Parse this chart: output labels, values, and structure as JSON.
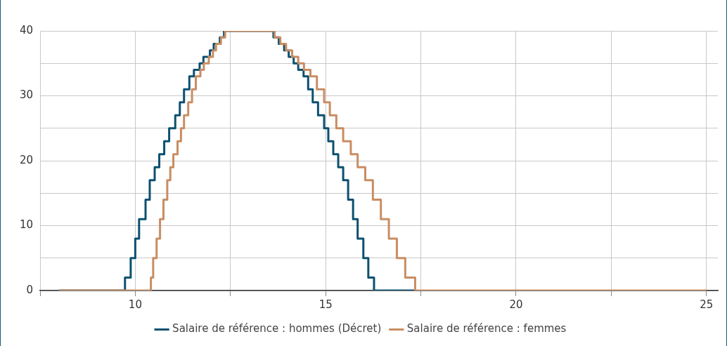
{
  "chart_data": {
    "type": "step",
    "xlim": [
      7.5,
      25.3
    ],
    "xticks": [
      {
        "value": 7.5,
        "label": null
      },
      10,
      {
        "value": 12.5,
        "label": null
      },
      15,
      {
        "value": 17.5,
        "label": null
      },
      20,
      {
        "value": 22.5,
        "label": null
      },
      25
    ],
    "ylim": [
      0,
      40
    ],
    "yticks": [
      0,
      {
        "value": 5,
        "label": null
      },
      10,
      {
        "value": 15,
        "label": null
      },
      20,
      {
        "value": 25,
        "label": null
      },
      30,
      {
        "value": 35,
        "label": null
      },
      40
    ],
    "grid": true,
    "legend": "bottom",
    "marker": "none",
    "line_style": "solid",
    "series": [
      {
        "name": "Salaire de référence : hommes (Décret)",
        "color": "#0d5070",
        "x": [
          8,
          9.73,
          9.88,
          10.0,
          10.1,
          10.27,
          10.38,
          10.51,
          10.63,
          10.76,
          10.89,
          11.05,
          11.17,
          11.28,
          11.42,
          11.54,
          11.69,
          11.79,
          11.96,
          12.06,
          12.22,
          12.33,
          13.63,
          13.77,
          13.91,
          14.03,
          14.16,
          14.28,
          14.42,
          14.54,
          14.66,
          14.8,
          14.96,
          15.07,
          15.2,
          15.33,
          15.46,
          15.59,
          15.72,
          15.84,
          15.99,
          16.12,
          16.27,
          17.35
        ],
        "values": [
          0,
          2,
          5,
          8,
          11,
          14,
          17,
          19,
          21,
          23,
          25,
          27,
          29,
          31,
          33,
          34,
          35,
          36,
          37,
          38,
          39,
          40,
          39,
          38,
          37,
          36,
          35,
          34,
          33,
          31,
          29,
          27,
          25,
          23,
          21,
          19,
          17,
          14,
          11,
          8,
          5,
          2,
          0,
          0
        ]
      },
      {
        "name": "Salaire de référence : femmes",
        "color": "#c98d63",
        "x": [
          8,
          10.41,
          10.47,
          10.56,
          10.65,
          10.74,
          10.84,
          10.92,
          11.0,
          11.11,
          11.2,
          11.28,
          11.39,
          11.49,
          11.59,
          11.71,
          11.8,
          11.93,
          12.04,
          12.12,
          12.25,
          12.36,
          13.66,
          13.81,
          13.96,
          14.12,
          14.28,
          14.43,
          14.6,
          14.77,
          14.96,
          15.11,
          15.28,
          15.46,
          15.66,
          15.84,
          16.04,
          16.24,
          16.45,
          16.66,
          16.87,
          17.09,
          17.35,
          25
        ],
        "values": [
          0,
          2,
          5,
          8,
          11,
          14,
          17,
          19,
          21,
          23,
          25,
          27,
          29,
          31,
          33,
          34,
          35,
          36,
          37,
          38,
          39,
          40,
          39,
          38,
          37,
          36,
          35,
          34,
          33,
          31,
          29,
          27,
          25,
          23,
          21,
          19,
          17,
          14,
          11,
          8,
          5,
          2,
          0,
          0
        ]
      }
    ]
  }
}
